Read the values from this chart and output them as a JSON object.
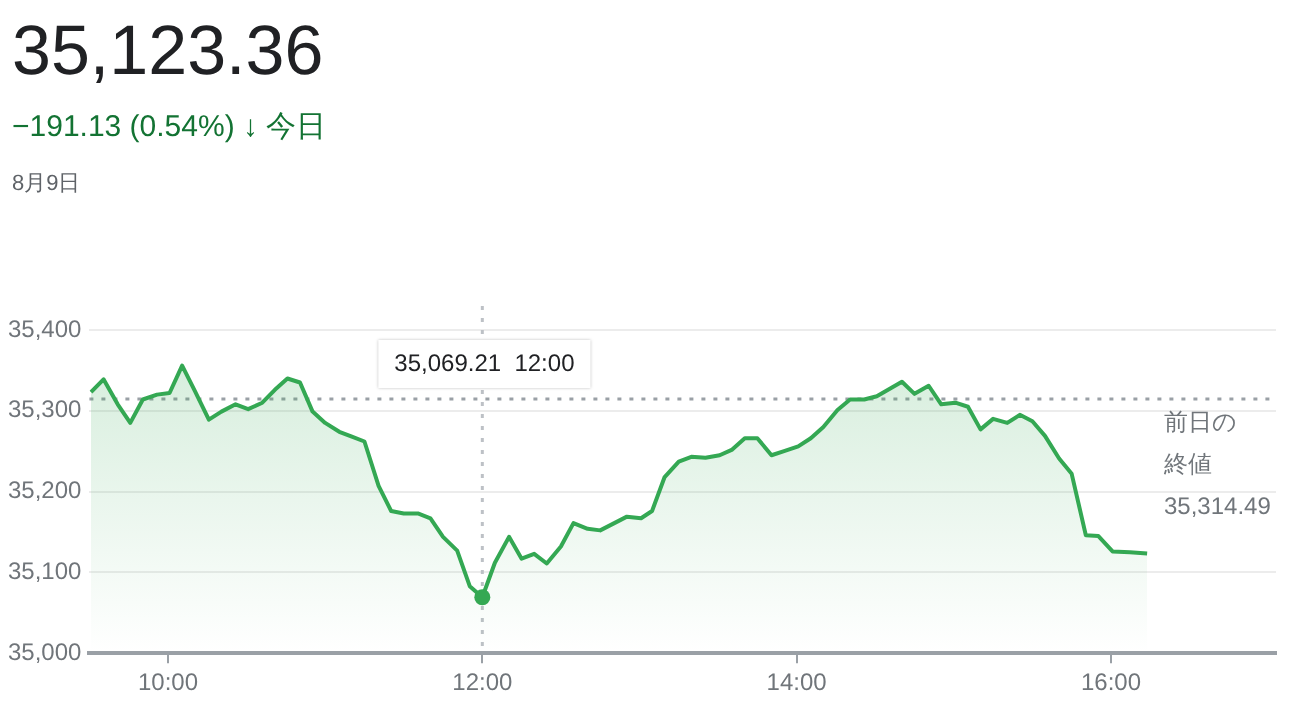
{
  "chart_data": {
    "type": "area",
    "title": "35,123.36",
    "subtitle": "−191.13 (0.54%) ↓ 今日",
    "annotations": [
      "8月9日",
      "35,069.21  12:00"
    ],
    "series": [
      {
        "color": "#34a853",
        "x": [
          9.51,
          9.59,
          9.68,
          9.76,
          9.84,
          9.93,
          10.01,
          10.09,
          10.17,
          10.26,
          10.34,
          10.43,
          10.51,
          10.6,
          10.68,
          10.76,
          10.84,
          10.92,
          11.0,
          11.09,
          11.17,
          11.25,
          11.34,
          11.42,
          11.5,
          11.59,
          11.67,
          11.75,
          11.84,
          11.92,
          12.0,
          12.08,
          12.17,
          12.25,
          12.33,
          12.41,
          12.5,
          12.58,
          12.67,
          12.75,
          12.84,
          12.92,
          13.01,
          13.08,
          13.16,
          13.25,
          13.33,
          13.42,
          13.51,
          13.59,
          13.67,
          13.75,
          13.84,
          13.92,
          14.01,
          14.09,
          14.17,
          14.26,
          14.34,
          14.43,
          14.51,
          14.59,
          14.67,
          14.75,
          14.84,
          14.92,
          15.01,
          15.09,
          15.17,
          15.25,
          15.34,
          15.42,
          15.5,
          15.58,
          15.67,
          15.75,
          15.84,
          15.92,
          16.01,
          16.12,
          16.23
        ],
        "values": [
          35323,
          35339,
          35308,
          35285,
          35314,
          35320,
          35322,
          35356,
          35325,
          35289,
          35299,
          35308,
          35302,
          35310,
          35326,
          35340,
          35335,
          35299,
          35285,
          35274,
          35268,
          35262,
          35207,
          35176,
          35173,
          35173,
          35167,
          35144,
          35127,
          35083,
          35069.21,
          35112,
          35144,
          35117,
          35123,
          35111,
          35132,
          35161,
          35154,
          35152,
          35161,
          35169,
          35167,
          35176,
          35218,
          35237,
          35243,
          35242,
          35245,
          35252,
          35266,
          35266,
          35245,
          35250,
          35256,
          35266,
          35280,
          35301,
          35314,
          35314,
          35318,
          35327,
          35336,
          35321,
          35331,
          35308,
          35310,
          35305,
          35277,
          35290,
          35285,
          35295,
          35287,
          35269,
          35241,
          35222,
          35146,
          35145,
          35126,
          35125,
          35123.36
        ]
      }
    ],
    "xlim": [
      9.5,
      17.05
    ],
    "xticks": [
      {
        "value": 10,
        "label": "10:00"
      },
      {
        "value": 12,
        "label": "12:00"
      },
      {
        "value": 14,
        "label": "14:00"
      },
      {
        "value": 16,
        "label": "16:00"
      }
    ],
    "ylim": [
      35000,
      35400
    ],
    "yticks": [
      {
        "value": 35000,
        "label": "35,000"
      },
      {
        "value": 35100,
        "label": "35,100"
      },
      {
        "value": 35200,
        "label": "35,200"
      },
      {
        "value": 35300,
        "label": "35,300"
      },
      {
        "value": 35400,
        "label": "35,400"
      }
    ],
    "ref_lines": [
      {
        "axis": "y",
        "value": 35314.49,
        "label": "前日の終値\n35,314.49",
        "color": "#9aa0a6",
        "line_style": "dotted"
      },
      {
        "axis": "x",
        "value": 12,
        "color": "#bdc1c6",
        "line_style": "dotted"
      }
    ],
    "grid": "y",
    "legend": false,
    "marker": "none",
    "line_style": "solid"
  }
}
